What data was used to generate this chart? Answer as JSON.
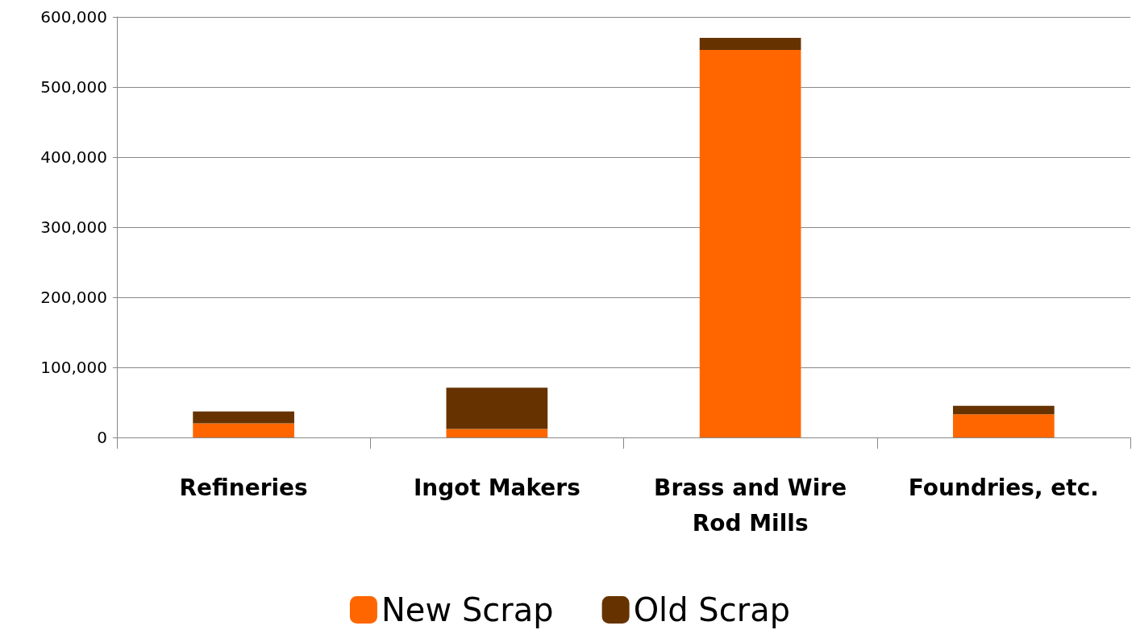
{
  "chart_data": {
    "type": "bar",
    "stacked": true,
    "categories": [
      "Refineries",
      "Ingot Makers",
      "Brass and Wire\nRod Mills",
      "Foundries, etc."
    ],
    "series": [
      {
        "name": "New Scrap",
        "color": "#ff6600",
        "values": [
          20000,
          12000,
          553000,
          33000
        ]
      },
      {
        "name": "Old Scrap",
        "color": "#663300",
        "values": [
          17000,
          59000,
          17000,
          12000
        ]
      }
    ],
    "ylim": [
      0,
      600000
    ],
    "yticks": [
      {
        "value": 0,
        "label": "0"
      },
      {
        "value": 100000,
        "label": "100,000"
      },
      {
        "value": 200000,
        "label": "200,000"
      },
      {
        "value": 300000,
        "label": "300,000"
      },
      {
        "value": 400000,
        "label": "400,000"
      },
      {
        "value": 500000,
        "label": "500,000"
      },
      {
        "value": 600000,
        "label": "600,000"
      }
    ],
    "grid": "y",
    "legend": "bottom"
  }
}
